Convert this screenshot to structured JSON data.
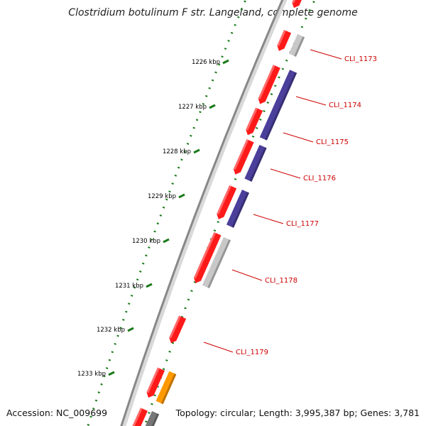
{
  "map": {
    "title": "Clostridium botulinum F str. Langeland, complete genome",
    "accession_text": "Accession: NC_009699",
    "summary_text": "Topology: circular; Length: 3,995,387 bp; Genes: 3,781"
  },
  "scale_labels": [
    "1226 kbp",
    "1227 kbp",
    "1228 kbp",
    "1229 kbp",
    "1230 kbp",
    "1231 kbp",
    "1232 kbp",
    "1233 kbp"
  ],
  "genes": [
    {
      "label": "CLI_1173",
      "cog_color": "#c8c8c8"
    },
    {
      "label": "CLI_1174",
      "cog_color": "#4a3f9a"
    },
    {
      "label": "CLI_1175",
      "cog_color": "#4a3f9a"
    },
    {
      "label": "CLI_1176",
      "cog_color": "#4a3f9a"
    },
    {
      "label": "CLI_1177",
      "cog_color": "#4a3f9a"
    },
    {
      "label": "CLI_1178",
      "cog_color": "#c8c8c8"
    },
    {
      "label": "CLI_1179",
      "cog_color": ""
    }
  ],
  "colors": {
    "cds": "#ff1a1a",
    "cds_light": "#ff8080",
    "backbone": "#888888",
    "gc_skew": "#1a7a1a",
    "label": "#cc0000",
    "orange_feature": "#ff9900",
    "gray_feature": "#777777"
  }
}
